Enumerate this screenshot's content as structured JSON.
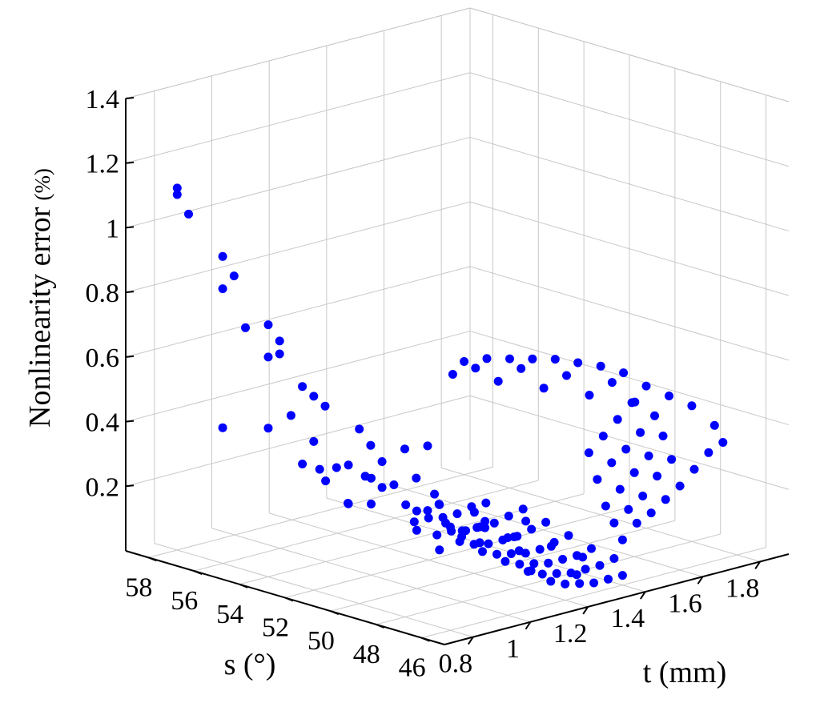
{
  "chart_data": {
    "type": "scatter3d",
    "title": "",
    "xlabel": "t (mm)",
    "ylabel": "s (°)",
    "zlabel_main": "Nonlinearity error",
    "zlabel_unit": "(%)",
    "xlim": [
      0.7,
      1.9
    ],
    "ylim": [
      45,
      59
    ],
    "zlim": [
      0,
      1.4
    ],
    "x_ticks": [
      0.8,
      1,
      1.2,
      1.4,
      1.6,
      1.8
    ],
    "x_tick_labels": [
      "0.8",
      "1",
      "1.2",
      "1.4",
      "1.6",
      "1.8"
    ],
    "y_ticks": [
      46,
      48,
      50,
      52,
      54,
      56,
      58
    ],
    "y_tick_labels": [
      "46",
      "48",
      "50",
      "52",
      "54",
      "56",
      "58"
    ],
    "z_ticks": [
      0.2,
      0.4,
      0.6,
      0.8,
      1,
      1.2,
      1.4
    ],
    "z_tick_labels": [
      "0.2",
      "0.4",
      "0.6",
      "0.8",
      "1",
      "1.2",
      "1.4"
    ],
    "grid": true,
    "marker_color": "#0000ff",
    "points": [
      [
        0.8,
        58,
        1.1
      ],
      [
        0.8,
        57.5,
        1.05
      ],
      [
        0.8,
        58,
        1.12
      ],
      [
        0.8,
        56,
        0.95
      ],
      [
        0.8,
        55.5,
        0.9
      ],
      [
        0.8,
        56,
        0.85
      ],
      [
        0.8,
        55,
        0.75
      ],
      [
        0.8,
        54,
        0.78
      ],
      [
        0.8,
        53.5,
        0.74
      ],
      [
        0.8,
        53.5,
        0.7
      ],
      [
        0.8,
        54,
        0.68
      ],
      [
        0.8,
        52.5,
        0.62
      ],
      [
        0.8,
        52,
        0.6
      ],
      [
        0.8,
        51.5,
        0.58
      ],
      [
        0.8,
        50,
        0.54
      ],
      [
        0.8,
        49.5,
        0.5
      ],
      [
        0.8,
        49,
        0.46
      ],
      [
        0.8,
        47.5,
        0.44
      ],
      [
        0.8,
        46.5,
        0.38
      ],
      [
        0.8,
        46,
        0.32
      ],
      [
        0.8,
        47,
        0.35
      ],
      [
        0.8,
        45.5,
        0.3
      ],
      [
        0.8,
        50.5,
        0.3
      ],
      [
        0.8,
        52,
        0.46
      ],
      [
        0.8,
        51,
        0.4
      ],
      [
        0.8,
        48,
        0.52
      ],
      [
        0.8,
        47,
        0.55
      ],
      [
        0.8,
        49,
        0.38
      ],
      [
        0.8,
        56,
        0.42
      ],
      [
        0.8,
        54,
        0.46
      ],
      [
        0.8,
        53,
        0.52
      ],
      [
        0.8,
        52.5,
        0.38
      ],
      [
        0.9,
        53,
        0.33
      ],
      [
        0.9,
        51,
        0.35
      ],
      [
        1.0,
        52,
        0.3
      ],
      [
        1.0,
        51,
        0.3
      ],
      [
        1.0,
        53,
        0.32
      ],
      [
        1.0,
        50,
        0.24
      ],
      [
        1.0,
        49,
        0.28
      ],
      [
        1.0,
        52,
        0.22
      ],
      [
        1.0,
        50,
        0.18
      ],
      [
        1.0,
        48,
        0.22
      ],
      [
        1.0,
        47,
        0.25
      ],
      [
        1.0,
        47,
        0.27
      ],
      [
        1.0,
        46,
        0.24
      ],
      [
        1.0,
        45.5,
        0.21
      ],
      [
        1.0,
        54,
        0.25
      ],
      [
        1.0,
        53,
        0.2
      ],
      [
        1.0,
        49,
        0.14
      ],
      [
        1.15,
        52,
        0.13
      ],
      [
        1.15,
        51,
        0.11
      ],
      [
        1.15,
        50,
        0.11
      ],
      [
        1.15,
        49,
        0.1
      ],
      [
        1.15,
        48,
        0.09
      ],
      [
        1.15,
        47,
        0.08
      ],
      [
        1.15,
        46,
        0.07
      ],
      [
        1.2,
        52,
        0.13
      ],
      [
        1.2,
        51,
        0.11
      ],
      [
        1.2,
        50,
        0.09
      ],
      [
        1.2,
        49,
        0.08
      ],
      [
        1.2,
        48,
        0.07
      ],
      [
        1.2,
        47,
        0.06
      ],
      [
        1.2,
        46,
        0.05
      ],
      [
        1.25,
        52,
        0.12
      ],
      [
        1.25,
        51,
        0.1
      ],
      [
        1.25,
        50,
        0.08
      ],
      [
        1.25,
        49,
        0.07
      ],
      [
        1.25,
        48,
        0.06
      ],
      [
        1.25,
        47,
        0.05
      ],
      [
        1.25,
        46,
        0.04
      ],
      [
        1.3,
        52,
        0.12
      ],
      [
        1.3,
        51,
        0.1
      ],
      [
        1.3,
        50,
        0.08
      ],
      [
        1.3,
        49,
        0.06
      ],
      [
        1.3,
        48,
        0.05
      ],
      [
        1.3,
        47,
        0.04
      ],
      [
        1.3,
        46,
        0.03
      ],
      [
        1.35,
        52,
        0.13
      ],
      [
        1.35,
        51,
        0.1
      ],
      [
        1.35,
        50,
        0.08
      ],
      [
        1.35,
        49,
        0.06
      ],
      [
        1.35,
        48,
        0.05
      ],
      [
        1.35,
        47,
        0.04
      ],
      [
        1.35,
        46,
        0.03
      ],
      [
        1.4,
        52,
        0.13
      ],
      [
        1.4,
        51,
        0.11
      ],
      [
        1.4,
        50,
        0.09
      ],
      [
        1.4,
        49,
        0.07
      ],
      [
        1.4,
        48,
        0.05
      ],
      [
        1.4,
        47,
        0.04
      ],
      [
        1.4,
        46,
        0.03
      ],
      [
        1.45,
        51,
        0.12
      ],
      [
        1.45,
        50,
        0.1
      ],
      [
        1.45,
        49,
        0.08
      ],
      [
        1.45,
        48,
        0.06
      ],
      [
        1.45,
        47,
        0.05
      ],
      [
        1.2,
        53,
        0.15
      ],
      [
        1.3,
        53,
        0.16
      ],
      [
        1.25,
        50.5,
        0.12
      ],
      [
        1.3,
        49.5,
        0.1
      ],
      [
        1.35,
        48.5,
        0.08
      ],
      [
        1.2,
        47.5,
        0.06
      ],
      [
        1.28,
        46.5,
        0.05
      ],
      [
        1.18,
        49.5,
        0.11
      ],
      [
        1.32,
        51.5,
        0.13
      ],
      [
        1.22,
        51.5,
        0.12
      ],
      [
        1.42,
        50.5,
        0.1
      ],
      [
        1.38,
        47.5,
        0.06
      ],
      [
        1.4,
        46,
        0.14
      ],
      [
        1.45,
        46,
        0.18
      ],
      [
        1.5,
        46,
        0.2
      ],
      [
        1.55,
        46,
        0.23
      ],
      [
        1.6,
        46,
        0.26
      ],
      [
        1.65,
        46,
        0.3
      ],
      [
        1.7,
        46,
        0.34
      ],
      [
        1.45,
        47,
        0.16
      ],
      [
        1.5,
        47,
        0.19
      ],
      [
        1.55,
        47,
        0.22
      ],
      [
        1.6,
        47,
        0.27
      ],
      [
        1.65,
        47,
        0.31
      ],
      [
        1.5,
        48,
        0.18
      ],
      [
        1.55,
        48,
        0.22
      ],
      [
        1.6,
        48,
        0.26
      ],
      [
        1.65,
        48,
        0.3
      ],
      [
        1.7,
        48,
        0.35
      ],
      [
        1.55,
        49,
        0.23
      ],
      [
        1.6,
        49,
        0.27
      ],
      [
        1.65,
        49,
        0.3
      ],
      [
        1.7,
        49,
        0.34
      ],
      [
        1.75,
        49,
        0.38
      ],
      [
        1.6,
        50,
        0.28
      ],
      [
        1.65,
        50,
        0.32
      ],
      [
        1.7,
        50,
        0.36
      ],
      [
        1.75,
        50,
        0.4
      ],
      [
        1.8,
        47,
        0.38
      ],
      [
        1.75,
        46,
        0.36
      ],
      [
        1.8,
        48,
        0.42
      ],
      [
        1.8,
        50,
        0.44
      ],
      [
        1.8,
        51,
        0.46
      ],
      [
        1.8,
        52,
        0.46
      ],
      [
        1.8,
        53,
        0.45
      ],
      [
        1.8,
        54,
        0.44
      ],
      [
        1.8,
        55,
        0.42
      ],
      [
        1.8,
        56,
        0.4
      ],
      [
        1.8,
        57,
        0.38
      ],
      [
        1.8,
        58,
        0.35
      ],
      [
        1.8,
        49,
        0.43
      ],
      [
        1.8,
        51.5,
        0.42
      ],
      [
        1.8,
        53.5,
        0.4
      ],
      [
        1.8,
        55.5,
        0.38
      ],
      [
        1.8,
        57.5,
        0.34
      ],
      [
        1.8,
        52.5,
        0.36
      ],
      [
        1.8,
        54.5,
        0.34
      ],
      [
        1.8,
        56.5,
        0.32
      ],
      [
        1.8,
        58.5,
        0.3
      ],
      [
        1.8,
        50.5,
        0.38
      ]
    ]
  }
}
